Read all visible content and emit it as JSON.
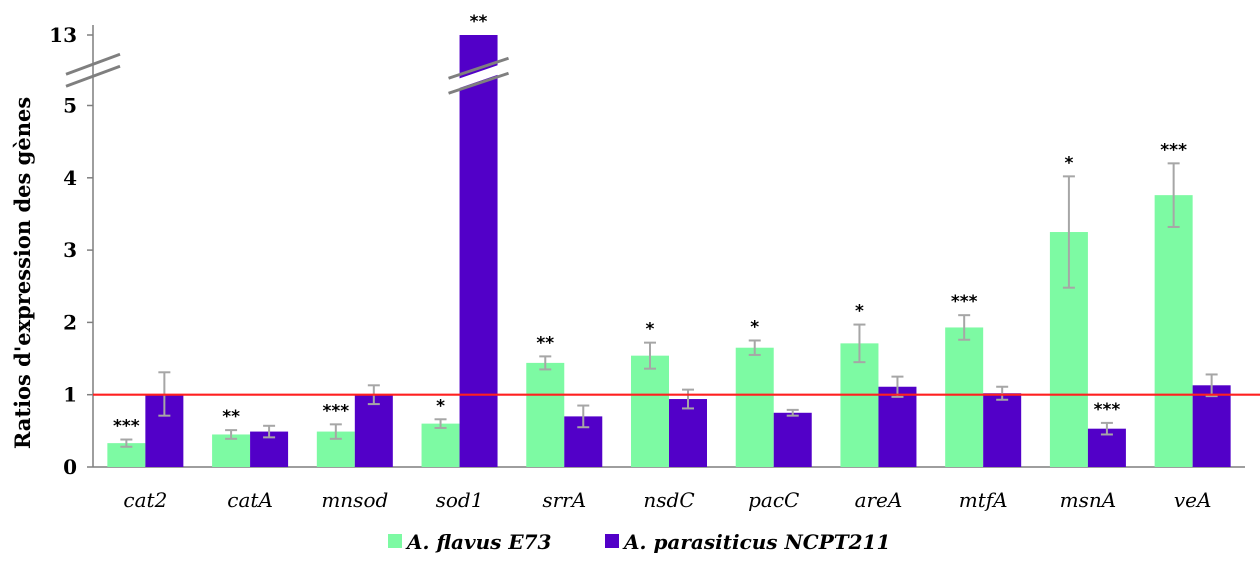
{
  "chart_data": {
    "type": "bar",
    "ylabel": "Ratios d'expression des gènes",
    "categories": [
      "cat2",
      "catA",
      "mnsod",
      "sod1",
      "srrA",
      "nsdC",
      "pacC",
      "areA",
      "mtfA",
      "msnA",
      "veA"
    ],
    "y_ticks": [
      "0",
      "1",
      "2",
      "3",
      "4",
      "5",
      "13"
    ],
    "ylim": [
      0,
      13
    ],
    "axis_break": true,
    "reference_line": {
      "y": 1,
      "color": "#ff2020"
    },
    "series": [
      {
        "name": "A. flavus E73",
        "color": "#7dfaa3",
        "values": [
          0.33,
          0.45,
          0.49,
          0.6,
          1.44,
          1.54,
          1.65,
          1.71,
          1.93,
          3.25,
          3.76
        ],
        "errors": [
          0.05,
          0.06,
          0.1,
          0.06,
          0.09,
          0.18,
          0.1,
          0.26,
          0.17,
          0.77,
          0.44
        ],
        "significance": [
          "***",
          "**",
          "***",
          "*",
          "**",
          "*",
          "*",
          "*",
          "***",
          "*",
          "***"
        ]
      },
      {
        "name": "A. parasiticus NCPT211",
        "color": "#5200c8",
        "values": [
          1.01,
          0.49,
          1.0,
          13,
          0.7,
          0.94,
          0.75,
          1.11,
          1.02,
          0.53,
          1.13
        ],
        "errors": [
          0.3,
          0.08,
          0.13,
          0,
          0.15,
          0.13,
          0.04,
          0.14,
          0.09,
          0.08,
          0.15
        ],
        "significance": [
          "",
          "",
          "",
          "**",
          "",
          "",
          "",
          "",
          "",
          "***",
          ""
        ]
      }
    ],
    "legend_position": "bottom-center",
    "grid": false
  }
}
